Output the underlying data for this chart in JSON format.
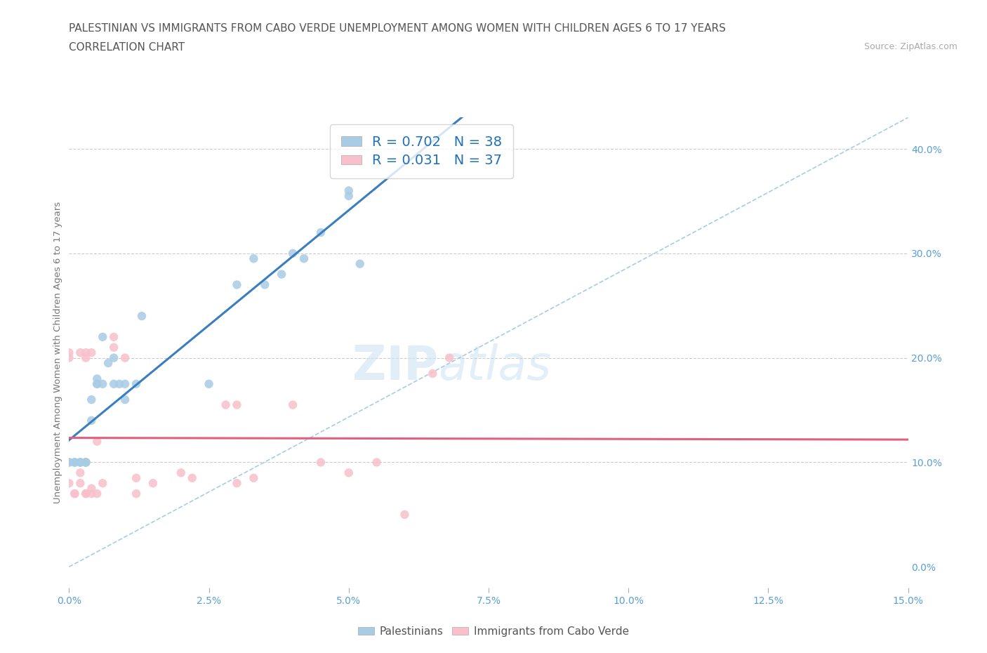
{
  "title_line1": "PALESTINIAN VS IMMIGRANTS FROM CABO VERDE UNEMPLOYMENT AMONG WOMEN WITH CHILDREN AGES 6 TO 17 YEARS",
  "title_line2": "CORRELATION CHART",
  "source": "Source: ZipAtlas.com",
  "xlabel_ticks": [
    "0.0%",
    "2.5%",
    "5.0%",
    "7.5%",
    "10.0%",
    "12.5%",
    "15.0%"
  ],
  "ylabel_ticks": [
    "0.0%",
    "10.0%",
    "20.0%",
    "30.0%",
    "40.0%"
  ],
  "xlim": [
    0.0,
    0.15
  ],
  "ylim": [
    -0.02,
    0.43
  ],
  "ylabel": "Unemployment Among Women with Children Ages 6 to 17 years",
  "legend_label1": "Palestinians",
  "legend_label2": "Immigrants from Cabo Verde",
  "r1": 0.702,
  "n1": 38,
  "r2": 0.031,
  "n2": 37,
  "color_blue": "#a8cce4",
  "color_pink": "#f9c0cc",
  "color_blue_line": "#3a7ebf",
  "color_pink_line": "#e06080",
  "color_diag": "#a8cce4",
  "background_color": "#ffffff",
  "watermark_zip": "ZIP",
  "watermark_atlas": "atlas",
  "palestinians_x": [
    0.0,
    0.0,
    0.001,
    0.001,
    0.001,
    0.002,
    0.002,
    0.002,
    0.003,
    0.003,
    0.003,
    0.003,
    0.004,
    0.004,
    0.005,
    0.005,
    0.005,
    0.006,
    0.006,
    0.007,
    0.008,
    0.008,
    0.009,
    0.01,
    0.01,
    0.012,
    0.013,
    0.025,
    0.03,
    0.033,
    0.035,
    0.038,
    0.04,
    0.042,
    0.045,
    0.05,
    0.05,
    0.052
  ],
  "palestinians_y": [
    0.1,
    0.1,
    0.1,
    0.1,
    0.1,
    0.1,
    0.1,
    0.1,
    0.1,
    0.1,
    0.1,
    0.1,
    0.14,
    0.16,
    0.175,
    0.175,
    0.18,
    0.22,
    0.175,
    0.195,
    0.2,
    0.175,
    0.175,
    0.16,
    0.175,
    0.175,
    0.24,
    0.175,
    0.27,
    0.295,
    0.27,
    0.28,
    0.3,
    0.295,
    0.32,
    0.355,
    0.36,
    0.29
  ],
  "cabo_x": [
    0.0,
    0.0,
    0.0,
    0.001,
    0.001,
    0.002,
    0.002,
    0.002,
    0.003,
    0.003,
    0.003,
    0.003,
    0.004,
    0.004,
    0.004,
    0.005,
    0.005,
    0.006,
    0.008,
    0.008,
    0.01,
    0.012,
    0.012,
    0.015,
    0.02,
    0.022,
    0.028,
    0.03,
    0.03,
    0.033,
    0.04,
    0.045,
    0.05,
    0.055,
    0.06,
    0.065,
    0.068
  ],
  "cabo_y": [
    0.2,
    0.205,
    0.08,
    0.07,
    0.07,
    0.08,
    0.09,
    0.205,
    0.2,
    0.205,
    0.07,
    0.07,
    0.075,
    0.07,
    0.205,
    0.12,
    0.07,
    0.08,
    0.21,
    0.22,
    0.2,
    0.07,
    0.085,
    0.08,
    0.09,
    0.085,
    0.155,
    0.155,
    0.08,
    0.085,
    0.155,
    0.1,
    0.09,
    0.1,
    0.05,
    0.185,
    0.2
  ]
}
